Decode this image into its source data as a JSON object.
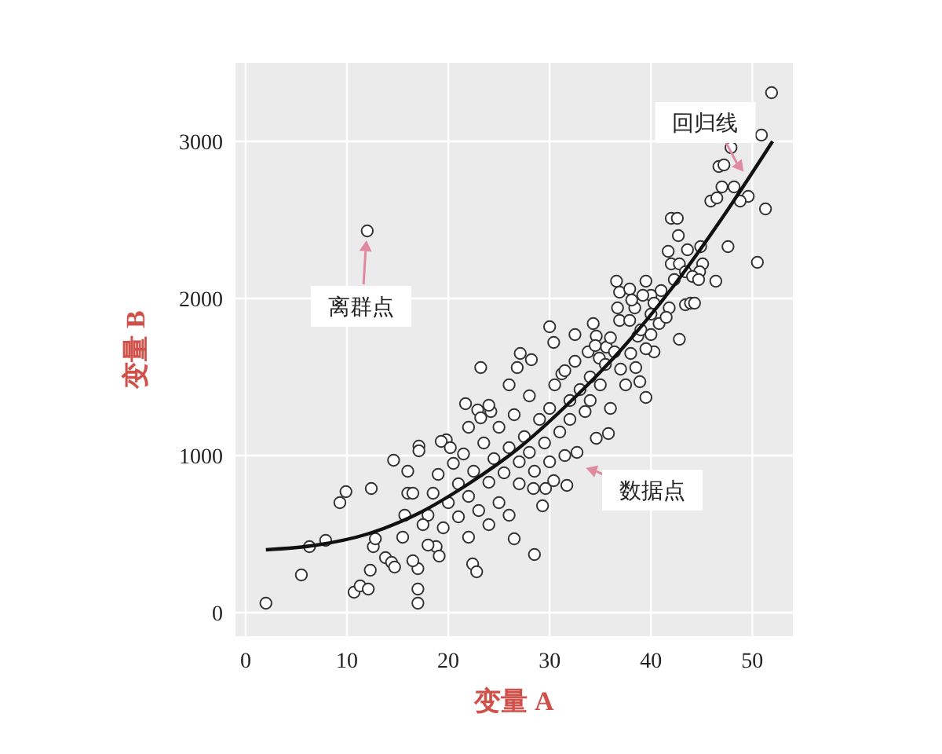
{
  "chart_data": {
    "type": "scatter",
    "xlabel": "变量 A",
    "ylabel": "变量 B",
    "xlim": [
      -1,
      54
    ],
    "ylim": [
      -150,
      3500
    ],
    "xticks": [
      0,
      10,
      20,
      30,
      40,
      50
    ],
    "yticks": [
      0,
      1000,
      2000,
      3000
    ],
    "grid": true,
    "series": [
      {
        "marker": "circle",
        "color": "#333333",
        "x": [
          2.0,
          5.5,
          6.3,
          7.9,
          9.3,
          9.9,
          12.4,
          14.6,
          10.7,
          11.3,
          12.1,
          12.3,
          12.6,
          12.8,
          13.8,
          14.4,
          14.7,
          17.0,
          17.0,
          17.0,
          17.1,
          17.1,
          16.0,
          16.5,
          15.7,
          19.8,
          19.3,
          20.2,
          21.7,
          22.9,
          24.2,
          23.2,
          23.2,
          22.4,
          22.8,
          18.8,
          19.1,
          35.8,
          28.5,
          26.5,
          29.3,
          31.7,
          32.7,
          34.6,
          39.5,
          38.9,
          31.2,
          31.5,
          28.4,
          29.6,
          30.4,
          51.9,
          50.9,
          47.9,
          46.7,
          47.2,
          47.0,
          48.2,
          45.9,
          46.5,
          49.6,
          48.8,
          51.3,
          47.6,
          50.5,
          42.0,
          42.6,
          42.7,
          41.7,
          43.6,
          44.9,
          45.1,
          44.8,
          42.0,
          42.8,
          43.4,
          44.1,
          42.3,
          44.7,
          46.4,
          36.6,
          36.9,
          39.5,
          40.0,
          37.9,
          39.2,
          38.4,
          38.1,
          40.3,
          41.8,
          43.4,
          43.9,
          44.3,
          36.7,
          36.9,
          37.9,
          38.7,
          40.0,
          40.8,
          30.0,
          30.4,
          32.5,
          34.3,
          34.6,
          35.6,
          36.4,
          33.8,
          34.9,
          27.1,
          28.2,
          26.8,
          42.8,
          40.3,
          18,
          18.5,
          19,
          19.5,
          20,
          20.5,
          21,
          21,
          21.5,
          22,
          22,
          22.5,
          23,
          23.5,
          24,
          24,
          24.5,
          25,
          25,
          25.5,
          26,
          26,
          26.5,
          27,
          27,
          27.5,
          28,
          28,
          28.5,
          29,
          29.5,
          30,
          30,
          30.5,
          31,
          31.5,
          32,
          32,
          32.5,
          33,
          33.5,
          34,
          34,
          34.5,
          35,
          35.5,
          36,
          36,
          37,
          37.5,
          38,
          38.5,
          39,
          39.5,
          40,
          41,
          41.5,
          26,
          24,
          22,
          15.5,
          16.5,
          17.5,
          18,
          16,
          12.0
        ],
        "values": [
          60,
          240,
          420,
          460,
          700,
          770,
          790,
          970,
          130,
          170,
          150,
          270,
          420,
          470,
          350,
          320,
          290,
          150,
          60,
          280,
          1060,
          1030,
          760,
          760,
          620,
          1100,
          1090,
          1050,
          1330,
          1290,
          1280,
          1240,
          1560,
          310,
          260,
          420,
          360,
          1140,
          370,
          470,
          680,
          810,
          1020,
          1110,
          1370,
          1470,
          1520,
          1540,
          790,
          790,
          840,
          3310,
          3040,
          2960,
          2840,
          2850,
          2710,
          2710,
          2620,
          2640,
          2650,
          2620,
          2570,
          2330,
          2230,
          2510,
          2510,
          2400,
          2300,
          2310,
          2330,
          2220,
          2170,
          2220,
          2220,
          2170,
          2140,
          2120,
          2120,
          2110,
          2110,
          2040,
          2110,
          2020,
          2060,
          2020,
          1940,
          1990,
          1970,
          1940,
          1960,
          1970,
          1970,
          1940,
          1860,
          1860,
          1760,
          1770,
          1840,
          1820,
          1720,
          1770,
          1840,
          1760,
          1690,
          1660,
          1660,
          1620,
          1650,
          1610,
          1560,
          1740,
          1660,
          620,
          760,
          880,
          540,
          700,
          950,
          610,
          820,
          1010,
          480,
          740,
          900,
          650,
          1080,
          560,
          830,
          980,
          700,
          1180,
          890,
          1050,
          620,
          1260,
          820,
          960,
          1120,
          1380,
          1020,
          900,
          1230,
          1080,
          1300,
          960,
          1450,
          1150,
          1000,
          1350,
          1230,
          1600,
          1420,
          1280,
          1500,
          1350,
          1700,
          1450,
          1580,
          1300,
          1750,
          1550,
          1450,
          1650,
          1560,
          1800,
          1680,
          1900,
          2050,
          1880,
          1450,
          1320,
          1180,
          480,
          330,
          560,
          430,
          900,
          2430
        ]
      },
      {
        "type": "line",
        "marker": "none",
        "color": "#111111",
        "x": [
          2,
          7,
          12,
          17,
          22,
          27,
          32,
          37,
          42,
          47,
          52
        ],
        "values": [
          400,
          430,
          500,
          630,
          820,
          1050,
          1340,
          1670,
          2060,
          2510,
          3000
        ]
      }
    ],
    "annotations": [
      {
        "text": "离群点",
        "x": 12.0,
        "y": 2430
      },
      {
        "text": "回归线",
        "x": 49.7,
        "y": 2760
      },
      {
        "text": "数据点",
        "x": 32.7,
        "y": 940
      }
    ]
  }
}
